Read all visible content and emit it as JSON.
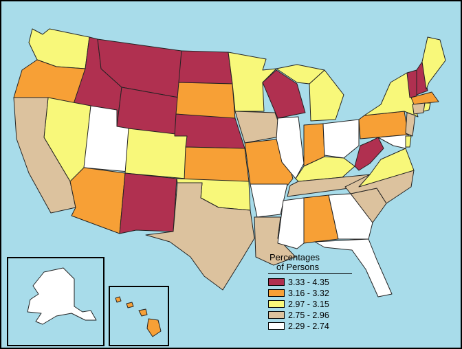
{
  "legend": {
    "title_line1": "Percentages",
    "title_line2": "of Persons",
    "items": [
      {
        "label": "3.33 - 4.35",
        "color": "#b03050"
      },
      {
        "label": "3.16 - 3.32",
        "color": "#f7a036"
      },
      {
        "label": "2.97 - 3.15",
        "color": "#f8f87a"
      },
      {
        "label": "2.75 - 2.96",
        "color": "#dcc29e"
      },
      {
        "label": "2.29 - 2.74",
        "color": "#ffffff"
      }
    ]
  },
  "colors": {
    "water": "#a8dcea",
    "class_1": "#b03050",
    "class_2": "#f7a036",
    "class_3": "#f8f87a",
    "class_4": "#dcc29e",
    "class_5": "#ffffff"
  }
}
